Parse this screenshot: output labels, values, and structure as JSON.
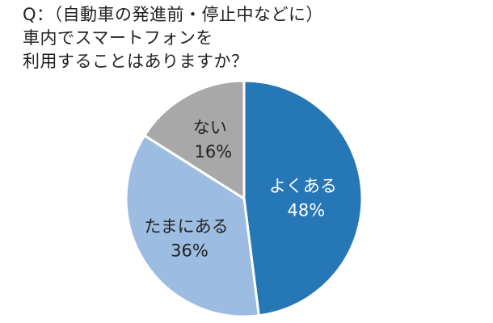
{
  "title_lines": [
    "Q：（自動車の発進前・停止中などに）",
    "車内でスマートフォンを",
    "利用することはありますか？"
  ],
  "chart_data": {
    "type": "pie",
    "title": "Q：（自動車の発進前・停止中などに）車内でスマートフォンを利用することはありますか？",
    "start": "12 o'clock",
    "direction": "clockwise",
    "slices": [
      {
        "label": "よくある",
        "value": 48,
        "value_text": "48%",
        "color": "#2677b6",
        "text_color": "#ffffff"
      },
      {
        "label": "たまにある",
        "value": 36,
        "value_text": "36%",
        "color": "#9cbde1",
        "text_color": "#222222"
      },
      {
        "label": "ない",
        "value": 16,
        "value_text": "16%",
        "color": "#a8a8a8",
        "text_color": "#222222"
      }
    ]
  }
}
